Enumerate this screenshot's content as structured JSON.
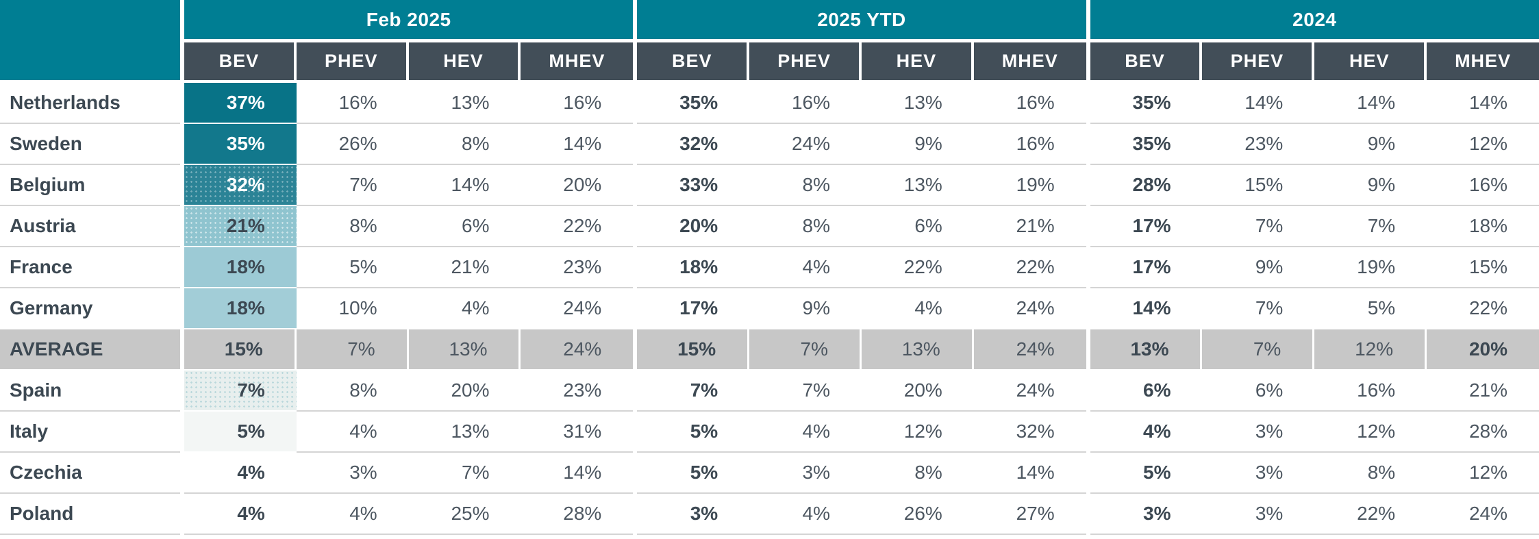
{
  "header": {
    "groups": [
      {
        "label": "Feb 2025"
      },
      {
        "label": "2025 YTD"
      },
      {
        "label": "2024"
      }
    ],
    "subcolumns": [
      "BEV",
      "PHEV",
      "HEV",
      "MHEV"
    ]
  },
  "colors": {
    "teal_header": "#007e93",
    "dark_header": "#424e58",
    "average_row_bg": "#c7c7c7",
    "grid_line": "#d4d4d4",
    "text_dark": "#3c4852",
    "text_regular": "#4d5761"
  },
  "rows": [
    {
      "country": "Netherlands",
      "feb2025": [
        "37%",
        "16%",
        "13%",
        "16%"
      ],
      "ytd2025": [
        "35%",
        "16%",
        "13%",
        "16%"
      ],
      "y2024": [
        "35%",
        "14%",
        "14%",
        "14%"
      ],
      "bev_heat": {
        "bg": "#087387",
        "text": "#ffffff",
        "dots": null
      }
    },
    {
      "country": "Sweden",
      "feb2025": [
        "35%",
        "26%",
        "8%",
        "14%"
      ],
      "ytd2025": [
        "32%",
        "24%",
        "9%",
        "16%"
      ],
      "y2024": [
        "35%",
        "23%",
        "9%",
        "12%"
      ],
      "bev_heat": {
        "bg": "#12788c",
        "text": "#ffffff",
        "dots": null
      }
    },
    {
      "country": "Belgium",
      "feb2025": [
        "32%",
        "7%",
        "14%",
        "20%"
      ],
      "ytd2025": [
        "33%",
        "8%",
        "13%",
        "19%"
      ],
      "y2024": [
        "28%",
        "15%",
        "9%",
        "16%"
      ],
      "bev_heat": {
        "bg": "#2b8396",
        "text": "#ffffff",
        "dots": "rgba(255,255,255,0.35)"
      }
    },
    {
      "country": "Austria",
      "feb2025": [
        "21%",
        "8%",
        "6%",
        "22%"
      ],
      "ytd2025": [
        "20%",
        "8%",
        "6%",
        "21%"
      ],
      "y2024": [
        "17%",
        "7%",
        "7%",
        "18%"
      ],
      "bev_heat": {
        "bg": "#8fc4cf",
        "text": "#3c4852",
        "dots": "rgba(255,255,255,0.55)"
      }
    },
    {
      "country": "France",
      "feb2025": [
        "18%",
        "5%",
        "21%",
        "23%"
      ],
      "ytd2025": [
        "18%",
        "4%",
        "22%",
        "22%"
      ],
      "y2024": [
        "17%",
        "9%",
        "19%",
        "15%"
      ],
      "bev_heat": {
        "bg": "#9ccad5",
        "text": "#3c4852",
        "dots": null
      }
    },
    {
      "country": "Germany",
      "feb2025": [
        "18%",
        "10%",
        "4%",
        "24%"
      ],
      "ytd2025": [
        "17%",
        "9%",
        "4%",
        "24%"
      ],
      "y2024": [
        "14%",
        "7%",
        "5%",
        "22%"
      ],
      "bev_heat": {
        "bg": "#a2cdd7",
        "text": "#3c4852",
        "dots": null
      }
    },
    {
      "country": "AVERAGE",
      "is_average": true,
      "bold_cells": [
        "y2024.3"
      ],
      "feb2025": [
        "15%",
        "7%",
        "13%",
        "24%"
      ],
      "ytd2025": [
        "15%",
        "7%",
        "13%",
        "24%"
      ],
      "y2024": [
        "13%",
        "7%",
        "12%",
        "20%"
      ],
      "bev_heat": null
    },
    {
      "country": "Spain",
      "feb2025": [
        "7%",
        "8%",
        "20%",
        "23%"
      ],
      "ytd2025": [
        "7%",
        "7%",
        "20%",
        "24%"
      ],
      "y2024": [
        "6%",
        "6%",
        "16%",
        "21%"
      ],
      "bev_heat": {
        "bg": "#e8efee",
        "text": "#3c4852",
        "dots": "rgba(0,126,147,0.20)"
      }
    },
    {
      "country": "Italy",
      "feb2025": [
        "5%",
        "4%",
        "13%",
        "31%"
      ],
      "ytd2025": [
        "5%",
        "4%",
        "12%",
        "32%"
      ],
      "y2024": [
        "4%",
        "3%",
        "12%",
        "28%"
      ],
      "bev_heat": {
        "bg": "#f3f6f5",
        "text": "#3c4852",
        "dots": null
      }
    },
    {
      "country": "Czechia",
      "feb2025": [
        "4%",
        "3%",
        "7%",
        "14%"
      ],
      "ytd2025": [
        "5%",
        "3%",
        "8%",
        "14%"
      ],
      "y2024": [
        "5%",
        "3%",
        "8%",
        "12%"
      ],
      "bev_heat": null
    },
    {
      "country": "Poland",
      "feb2025": [
        "4%",
        "4%",
        "25%",
        "28%"
      ],
      "ytd2025": [
        "3%",
        "4%",
        "26%",
        "27%"
      ],
      "y2024": [
        "3%",
        "3%",
        "22%",
        "24%"
      ],
      "bev_heat": null
    }
  ],
  "chart_data": {
    "type": "table",
    "title": "",
    "column_groups": [
      "Feb 2025",
      "2025 YTD",
      "2024"
    ],
    "columns_per_group": [
      "BEV",
      "PHEV",
      "HEV",
      "MHEV"
    ],
    "row_labels": [
      "Netherlands",
      "Sweden",
      "Belgium",
      "Austria",
      "France",
      "Germany",
      "AVERAGE",
      "Spain",
      "Italy",
      "Czechia",
      "Poland"
    ],
    "values_pct": {
      "Feb 2025": [
        [
          37,
          16,
          13,
          16
        ],
        [
          35,
          26,
          8,
          14
        ],
        [
          32,
          7,
          14,
          20
        ],
        [
          21,
          8,
          6,
          22
        ],
        [
          18,
          5,
          21,
          23
        ],
        [
          18,
          10,
          4,
          24
        ],
        [
          15,
          7,
          13,
          24
        ],
        [
          7,
          8,
          20,
          23
        ],
        [
          5,
          4,
          13,
          31
        ],
        [
          4,
          3,
          7,
          14
        ],
        [
          4,
          4,
          25,
          28
        ]
      ],
      "2025 YTD": [
        [
          35,
          16,
          13,
          16
        ],
        [
          32,
          24,
          9,
          16
        ],
        [
          33,
          8,
          13,
          19
        ],
        [
          20,
          8,
          6,
          21
        ],
        [
          18,
          4,
          22,
          22
        ],
        [
          17,
          9,
          4,
          24
        ],
        [
          15,
          7,
          13,
          24
        ],
        [
          7,
          7,
          20,
          24
        ],
        [
          5,
          4,
          12,
          32
        ],
        [
          5,
          3,
          8,
          14
        ],
        [
          3,
          4,
          26,
          27
        ]
      ],
      "2024": [
        [
          35,
          14,
          14,
          14
        ],
        [
          35,
          23,
          9,
          12
        ],
        [
          28,
          15,
          9,
          16
        ],
        [
          17,
          7,
          7,
          18
        ],
        [
          17,
          9,
          19,
          15
        ],
        [
          14,
          7,
          5,
          22
        ],
        [
          13,
          7,
          12,
          20
        ],
        [
          6,
          6,
          16,
          21
        ],
        [
          4,
          3,
          12,
          28
        ],
        [
          5,
          3,
          8,
          12
        ],
        [
          3,
          3,
          22,
          24
        ]
      ]
    },
    "layout_hints": {
      "heatmap_column": "Feb 2025 BEV",
      "average_row_highlight": "gray",
      "bold_columns": [
        "BEV"
      ],
      "grid": "horizontal light-gray separators"
    }
  }
}
